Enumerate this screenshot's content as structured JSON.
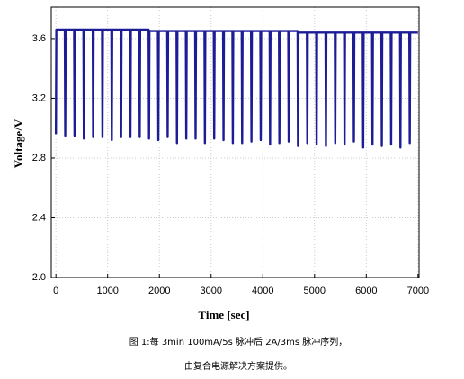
{
  "chart_data": {
    "type": "line",
    "ylabel": "Voltage/V",
    "xlabel": "Time [sec]",
    "caption": [
      "图 1:每 3min 100mA/5s 脉冲后 2A/3ms 脉冲序列，",
      "由复合电源解决方案提供。"
    ],
    "color": "#1c1c96",
    "grid": true,
    "xlim": [
      -90,
      7020
    ],
    "ylim": [
      2.0,
      3.81
    ],
    "xticks": [
      0,
      1000,
      2000,
      3000,
      4000,
      5000,
      6000,
      7000
    ],
    "yticks": [
      {
        "value": 2.0,
        "label": "2.0"
      },
      2.4,
      2.8,
      3.2,
      3.6
    ],
    "x": [
      0,
      8,
      172,
      180,
      188,
      352,
      360,
      368,
      532,
      540,
      548,
      712,
      720,
      728,
      892,
      900,
      908,
      1072,
      1080,
      1088,
      1252,
      1260,
      1268,
      1432,
      1440,
      1448,
      1612,
      1620,
      1628,
      1792,
      1800,
      1808,
      1972,
      1980,
      1988,
      2152,
      2160,
      2168,
      2332,
      2340,
      2348,
      2512,
      2520,
      2528,
      2692,
      2700,
      2708,
      2872,
      2880,
      2888,
      3052,
      3060,
      3068,
      3232,
      3240,
      3248,
      3412,
      3420,
      3428,
      3592,
      3600,
      3608,
      3772,
      3780,
      3788,
      3952,
      3960,
      3968,
      4132,
      4140,
      4148,
      4312,
      4320,
      4328,
      4492,
      4500,
      4508,
      4672,
      4680,
      4688,
      4852,
      4860,
      4868,
      5032,
      5040,
      5048,
      5212,
      5220,
      5228,
      5392,
      5400,
      5408,
      5572,
      5580,
      5588,
      5752,
      5760,
      5768,
      5932,
      5940,
      5948,
      6112,
      6120,
      6128,
      6292,
      6300,
      6308,
      6472,
      6480,
      6488,
      6652,
      6660,
      6668,
      6832,
      6840,
      6848,
      7000
    ],
    "values": [
      2.96,
      3.66,
      3.66,
      2.95,
      3.66,
      3.66,
      2.95,
      3.66,
      3.66,
      2.93,
      3.66,
      3.66,
      2.94,
      3.66,
      3.66,
      2.94,
      3.66,
      3.66,
      2.92,
      3.66,
      3.66,
      2.94,
      3.66,
      3.66,
      2.94,
      3.66,
      3.66,
      2.94,
      3.66,
      3.66,
      2.93,
      3.65,
      3.65,
      2.92,
      3.65,
      3.65,
      2.94,
      3.65,
      3.65,
      2.9,
      3.65,
      3.65,
      2.93,
      3.65,
      3.65,
      2.93,
      3.65,
      3.65,
      2.9,
      3.65,
      3.65,
      2.93,
      3.65,
      3.65,
      2.92,
      3.65,
      3.65,
      2.9,
      3.65,
      3.65,
      2.9,
      3.65,
      3.65,
      2.91,
      3.65,
      3.65,
      2.92,
      3.65,
      3.65,
      2.89,
      3.65,
      3.65,
      2.9,
      3.65,
      3.65,
      2.91,
      3.65,
      3.65,
      2.88,
      3.64,
      3.64,
      2.9,
      3.64,
      3.64,
      2.89,
      3.64,
      3.64,
      2.88,
      3.64,
      3.64,
      2.9,
      3.64,
      3.64,
      2.89,
      3.64,
      3.64,
      2.91,
      3.64,
      3.64,
      2.87,
      3.64,
      3.64,
      2.89,
      3.64,
      3.64,
      2.88,
      3.64,
      3.64,
      2.89,
      3.64,
      3.64,
      2.87,
      3.64,
      3.64,
      2.9,
      3.64,
      3.64
    ]
  }
}
